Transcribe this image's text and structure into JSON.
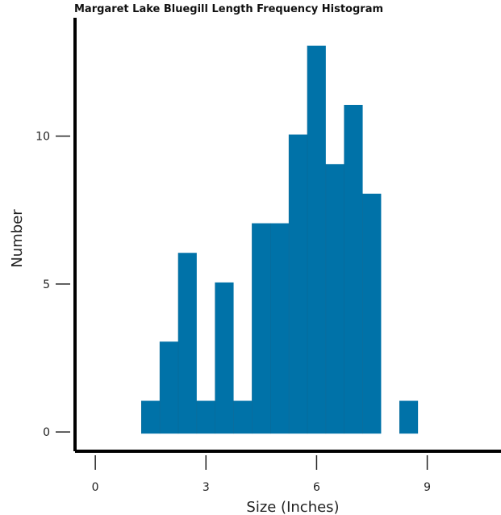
{
  "chart_data": {
    "type": "bar",
    "title": "Margaret Lake Bluegill Length Frequency Histogram",
    "xlabel": "Size (Inches)",
    "ylabel": "Number",
    "bin_width": 0.5,
    "bins": [
      {
        "start": 1.25,
        "end": 1.75,
        "value": 1
      },
      {
        "start": 1.75,
        "end": 2.25,
        "value": 3
      },
      {
        "start": 2.25,
        "end": 2.75,
        "value": 6
      },
      {
        "start": 2.75,
        "end": 3.25,
        "value": 1
      },
      {
        "start": 3.25,
        "end": 3.75,
        "value": 5
      },
      {
        "start": 3.75,
        "end": 4.25,
        "value": 1
      },
      {
        "start": 4.25,
        "end": 4.75,
        "value": 7
      },
      {
        "start": 4.75,
        "end": 5.25,
        "value": 7
      },
      {
        "start": 5.25,
        "end": 5.75,
        "value": 10
      },
      {
        "start": 5.75,
        "end": 6.25,
        "value": 13
      },
      {
        "start": 6.25,
        "end": 6.75,
        "value": 9
      },
      {
        "start": 6.75,
        "end": 7.25,
        "value": 11
      },
      {
        "start": 7.25,
        "end": 7.75,
        "value": 8
      },
      {
        "start": 8.25,
        "end": 8.75,
        "value": 1
      }
    ],
    "xlim": [
      -0.55,
      11.0
    ],
    "ylim": [
      -0.65,
      14.0
    ],
    "x_ticks": [
      0,
      3,
      6,
      9
    ],
    "x_tick_labels": [
      "0",
      "3",
      "6",
      "9"
    ],
    "y_ticks": [
      0,
      5,
      10
    ],
    "y_tick_labels": [
      "0",
      "5",
      "10"
    ],
    "bar_color": "#0072a8",
    "grid": false,
    "legend": "none"
  }
}
